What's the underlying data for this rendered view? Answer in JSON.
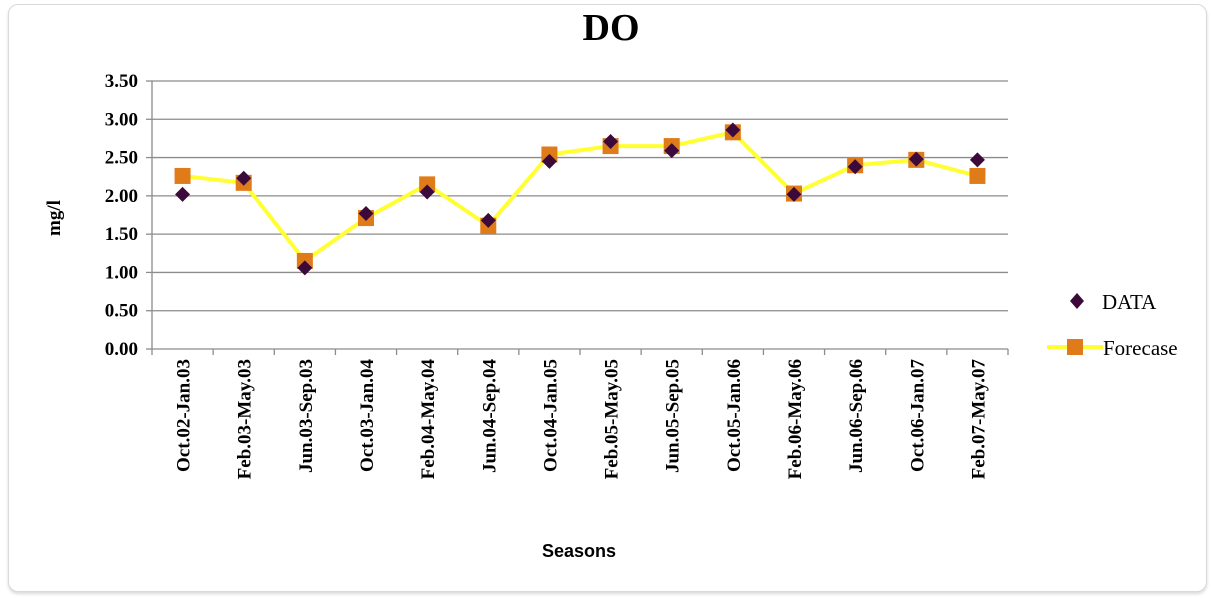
{
  "chart_data": {
    "type": "line",
    "title": "DO",
    "xlabel": "Seasons",
    "ylabel": "mg/l",
    "ylim": [
      0,
      3.5
    ],
    "yticks": [
      "0.00",
      "0.50",
      "1.00",
      "1.50",
      "2.00",
      "2.50",
      "3.00",
      "3.50"
    ],
    "grid": true,
    "legend_position": "right",
    "categories": [
      "Oct.02-Jan.03",
      "Feb.03-May.03",
      "Jun.03-Sep.03",
      "Oct.03-Jan.04",
      "Feb.04-May.04",
      "Jun.04-Sep.04",
      "Oct.04-Jan.05",
      "Feb.05-May.05",
      "Jun.05-Sep.05",
      "Oct.05-Jan.06",
      "Feb.06-May.06",
      "Jun.06-Sep.06",
      "Oct.06-Jan.07",
      "Feb.07-May.07"
    ],
    "series": [
      {
        "name": "DATA",
        "marker": "diamond",
        "color": "#3b0a3a",
        "values": [
          2.02,
          2.23,
          1.06,
          1.77,
          2.05,
          1.68,
          2.45,
          2.71,
          2.59,
          2.86,
          2.02,
          2.38,
          2.48,
          2.47
        ]
      },
      {
        "name": "Forecase",
        "marker": "square",
        "color": "#e07b1a",
        "line_color": "#ffff33",
        "values": [
          2.26,
          2.17,
          1.15,
          1.71,
          2.15,
          1.61,
          2.54,
          2.65,
          2.65,
          2.83,
          2.03,
          2.4,
          2.47,
          2.26
        ]
      }
    ]
  }
}
